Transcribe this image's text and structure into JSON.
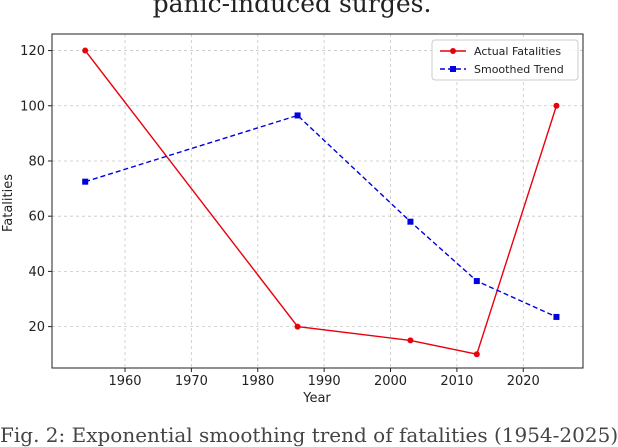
{
  "captions": {
    "top_text": "panic-induced surges.",
    "bottom_text": "Fig. 2: Exponential smoothing trend of fatalities (1954-2025)"
  },
  "chart_data": {
    "type": "line",
    "title": "",
    "xlabel": "Year",
    "ylabel": "Fatalities",
    "xlim": [
      1949,
      2029
    ],
    "ylim": [
      5,
      126
    ],
    "xticks": [
      1960,
      1970,
      1980,
      1990,
      2000,
      2010,
      2020
    ],
    "yticks": [
      20,
      40,
      60,
      80,
      100,
      120
    ],
    "grid": true,
    "legend_position": "top-right",
    "x": [
      1954,
      1986,
      2003,
      2013,
      2025
    ],
    "series": [
      {
        "name": "Actual Fatalities",
        "color": "#e8000b",
        "line_style": "solid",
        "marker": "circle",
        "values": [
          120,
          20,
          15,
          10,
          100
        ]
      },
      {
        "name": "Smoothed Trend",
        "color": "#0000e0",
        "line_style": "dashed",
        "marker": "square",
        "values": [
          72.5,
          96.5,
          58,
          36.5,
          23.5
        ]
      }
    ]
  }
}
